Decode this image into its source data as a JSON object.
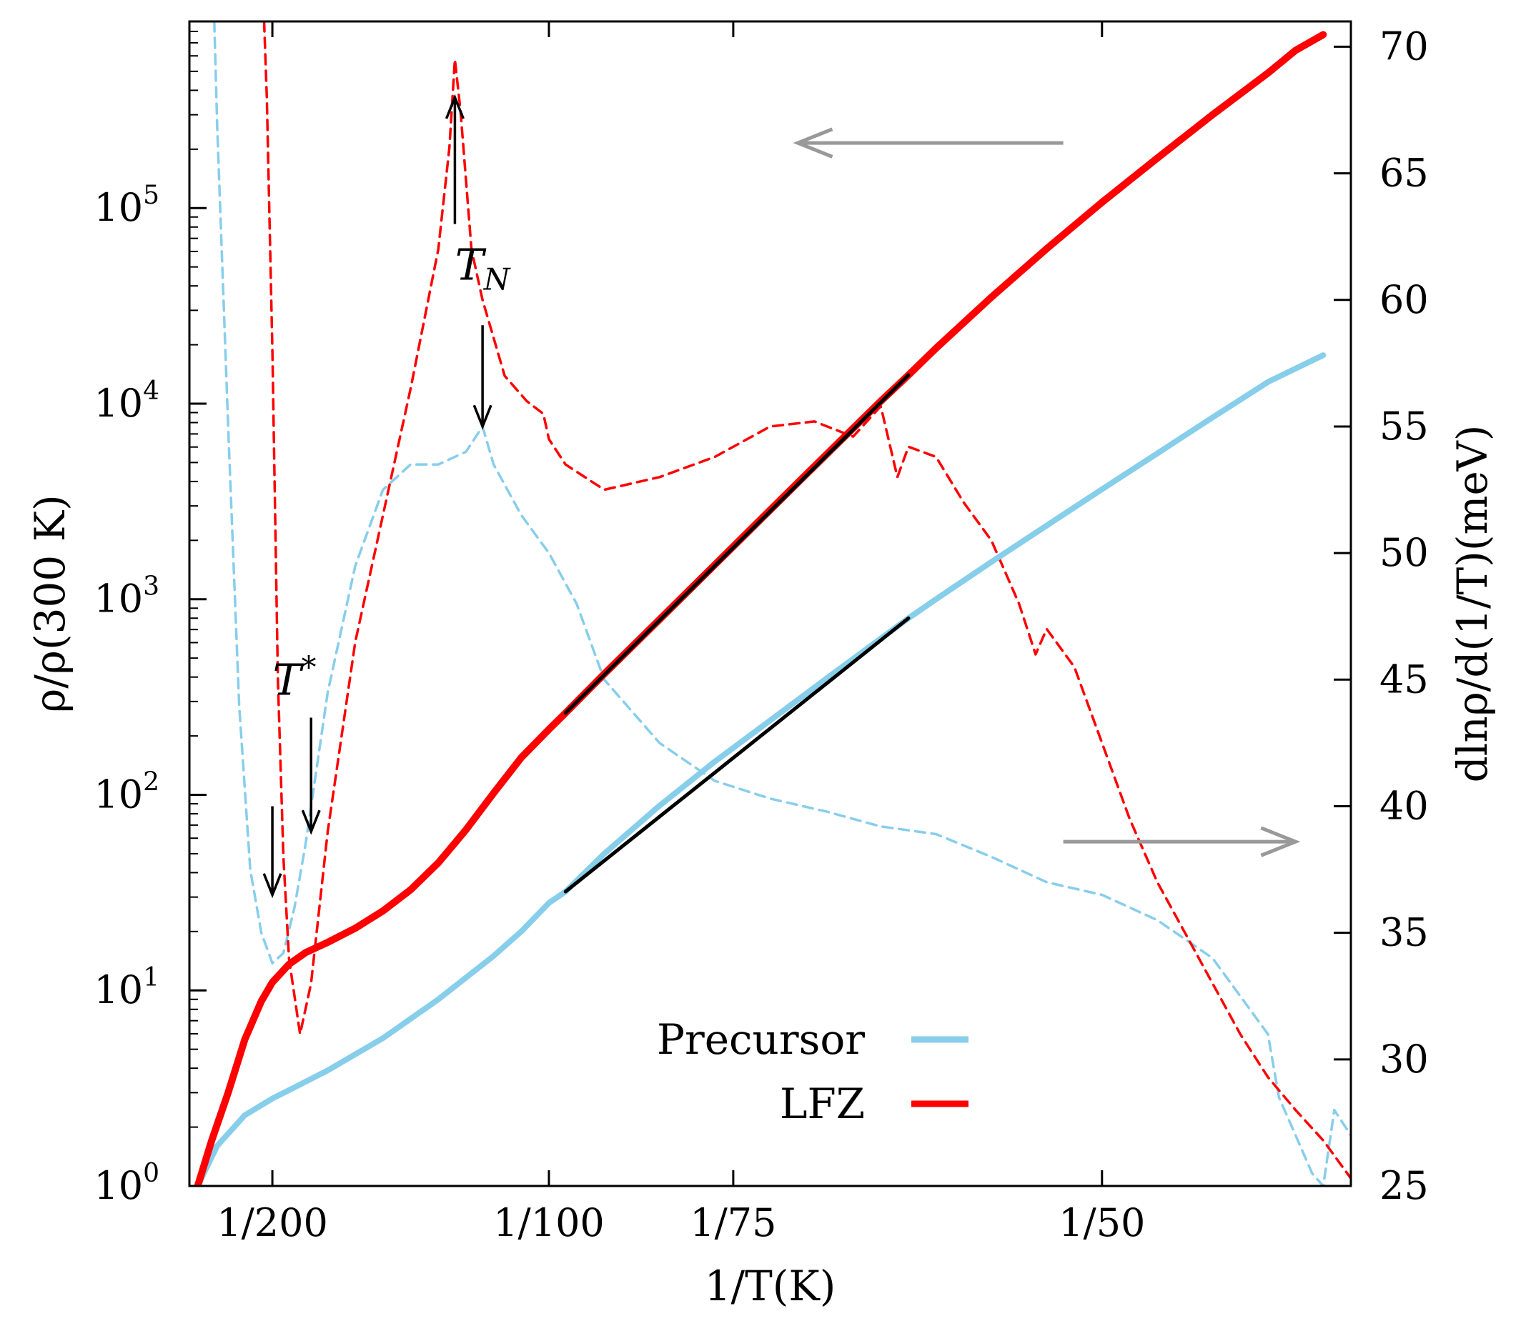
{
  "chart_data": {
    "type": "line",
    "x": {
      "label": "1/T(K)",
      "unit": "1/K",
      "range": [
        0.0035,
        0.0245
      ],
      "ticks": [
        {
          "value": 0.005,
          "label": "1/200"
        },
        {
          "value": 0.01,
          "label": "1/100"
        },
        {
          "value": 0.013333,
          "label": "1/75"
        },
        {
          "value": 0.02,
          "label": "1/50"
        }
      ]
    },
    "y_left": {
      "label": "ρ/ρ(300 K)",
      "scale": "log",
      "range": [
        1,
        900000
      ],
      "ticks": [
        {
          "value": 1,
          "base": "10",
          "exp": "0"
        },
        {
          "value": 10,
          "base": "10",
          "exp": "1"
        },
        {
          "value": 100,
          "base": "10",
          "exp": "2"
        },
        {
          "value": 1000,
          "base": "10",
          "exp": "3"
        },
        {
          "value": 10000,
          "base": "10",
          "exp": "4"
        },
        {
          "value": 100000,
          "base": "10",
          "exp": "5"
        }
      ]
    },
    "y_right": {
      "label": "dlnρ/d(1/T)(meV)",
      "range": [
        25,
        71
      ],
      "ticks": [
        {
          "value": 25,
          "label": "25"
        },
        {
          "value": 30,
          "label": "30"
        },
        {
          "value": 35,
          "label": "35"
        },
        {
          "value": 40,
          "label": "40"
        },
        {
          "value": 45,
          "label": "45"
        },
        {
          "value": 50,
          "label": "50"
        },
        {
          "value": 55,
          "label": "55"
        },
        {
          "value": 60,
          "label": "60"
        },
        {
          "value": 65,
          "label": "65"
        },
        {
          "value": 70,
          "label": "70"
        }
      ]
    },
    "series": [
      {
        "name": "LFZ",
        "axis": "left",
        "style": "solid",
        "color": "#ff0000",
        "points": [
          [
            0.00365,
            1.0
          ],
          [
            0.0039,
            1.7
          ],
          [
            0.0042,
            3.0
          ],
          [
            0.0045,
            5.6
          ],
          [
            0.0048,
            8.8
          ],
          [
            0.005,
            11.0
          ],
          [
            0.0053,
            13.6
          ],
          [
            0.0056,
            15.6
          ],
          [
            0.006,
            17.6
          ],
          [
            0.0065,
            20.8
          ],
          [
            0.007,
            25.5
          ],
          [
            0.0075,
            32.7
          ],
          [
            0.008,
            44.9
          ],
          [
            0.0085,
            66.2
          ],
          [
            0.009,
            102
          ],
          [
            0.0095,
            155
          ],
          [
            0.01,
            216
          ],
          [
            0.0103,
            262
          ],
          [
            0.011,
            415
          ],
          [
            0.012,
            787
          ],
          [
            0.013,
            1500
          ],
          [
            0.014,
            2860
          ],
          [
            0.015,
            5440
          ],
          [
            0.016,
            10300
          ],
          [
            0.0165,
            14000
          ],
          [
            0.017,
            19200
          ],
          [
            0.018,
            35000
          ],
          [
            0.019,
            62000
          ],
          [
            0.02,
            107000
          ],
          [
            0.021,
            180000
          ],
          [
            0.022,
            300000
          ],
          [
            0.023,
            490000
          ],
          [
            0.0235,
            640000
          ],
          [
            0.024,
            770000
          ]
        ]
      },
      {
        "name": "Precursor",
        "axis": "left",
        "style": "solid",
        "color": "#87ceeb",
        "points": [
          [
            0.00365,
            1.0
          ],
          [
            0.004,
            1.6
          ],
          [
            0.0045,
            2.3
          ],
          [
            0.005,
            2.8
          ],
          [
            0.0055,
            3.3
          ],
          [
            0.006,
            3.9
          ],
          [
            0.007,
            5.7
          ],
          [
            0.008,
            9.0
          ],
          [
            0.009,
            15.0
          ],
          [
            0.0095,
            20.0
          ],
          [
            0.01,
            28.0
          ],
          [
            0.0103,
            32.0
          ],
          [
            0.011,
            50.0
          ],
          [
            0.012,
            88.0
          ],
          [
            0.013,
            148
          ],
          [
            0.014,
            240
          ],
          [
            0.015,
            390
          ],
          [
            0.016,
            630
          ],
          [
            0.0165,
            800
          ],
          [
            0.017,
            1000
          ],
          [
            0.018,
            1550
          ],
          [
            0.019,
            2380
          ],
          [
            0.02,
            3650
          ],
          [
            0.021,
            5570
          ],
          [
            0.022,
            8500
          ],
          [
            0.023,
            12900
          ],
          [
            0.024,
            17700
          ]
        ]
      },
      {
        "name": "LFZ fit",
        "axis": "left",
        "style": "fit",
        "color": "#000000",
        "points": [
          [
            0.0103,
            262
          ],
          [
            0.0165,
            14000
          ]
        ]
      },
      {
        "name": "Precursor fit",
        "axis": "left",
        "style": "fit",
        "color": "#000000",
        "points": [
          [
            0.0103,
            32.0
          ],
          [
            0.0165,
            800
          ]
        ]
      },
      {
        "name": "LFZ derivative",
        "axis": "right",
        "style": "dashed",
        "color": "#ff0000",
        "points": [
          [
            0.00485,
            71.0
          ],
          [
            0.0049,
            68.0
          ],
          [
            0.005,
            58.0
          ],
          [
            0.0051,
            45.0
          ],
          [
            0.0052,
            38.0
          ],
          [
            0.0053,
            34.0
          ],
          [
            0.0055,
            31.0
          ],
          [
            0.0057,
            33.0
          ],
          [
            0.006,
            39.0
          ],
          [
            0.0065,
            46.5
          ],
          [
            0.007,
            51.5
          ],
          [
            0.0075,
            56.5
          ],
          [
            0.008,
            62.0
          ],
          [
            0.0082,
            66.0
          ],
          [
            0.0083,
            69.5
          ],
          [
            0.0084,
            67.5
          ],
          [
            0.0086,
            62.0
          ],
          [
            0.0088,
            60.0
          ],
          [
            0.009,
            58.5
          ],
          [
            0.0092,
            57.0
          ],
          [
            0.0096,
            56.0
          ],
          [
            0.0099,
            55.5
          ],
          [
            0.01,
            54.5
          ],
          [
            0.0103,
            53.5
          ],
          [
            0.011,
            52.5
          ],
          [
            0.012,
            53.0
          ],
          [
            0.013,
            53.8
          ],
          [
            0.014,
            55.0
          ],
          [
            0.0148,
            55.2
          ],
          [
            0.0155,
            54.6
          ],
          [
            0.016,
            55.8
          ],
          [
            0.0163,
            53.0
          ],
          [
            0.0165,
            54.2
          ],
          [
            0.017,
            53.8
          ],
          [
            0.0175,
            52.0
          ],
          [
            0.018,
            50.5
          ],
          [
            0.0185,
            48.0
          ],
          [
            0.0188,
            46.0
          ],
          [
            0.019,
            47.0
          ],
          [
            0.0195,
            45.5
          ],
          [
            0.02,
            42.5
          ],
          [
            0.0205,
            39.5
          ],
          [
            0.021,
            37.0
          ],
          [
            0.0215,
            35.0
          ],
          [
            0.022,
            33.0
          ],
          [
            0.0225,
            31.0
          ],
          [
            0.023,
            29.3
          ],
          [
            0.0235,
            28.0
          ],
          [
            0.024,
            26.8
          ],
          [
            0.0245,
            25.3
          ]
        ]
      },
      {
        "name": "Precursor derivative",
        "axis": "right",
        "style": "dashed",
        "color": "#87ceeb",
        "points": [
          [
            0.00395,
            71.0
          ],
          [
            0.004,
            67.0
          ],
          [
            0.0042,
            55.0
          ],
          [
            0.0044,
            44.0
          ],
          [
            0.0046,
            37.5
          ],
          [
            0.0048,
            35.0
          ],
          [
            0.005,
            33.8
          ],
          [
            0.0052,
            34.2
          ],
          [
            0.0054,
            36.0
          ],
          [
            0.0056,
            38.5
          ],
          [
            0.006,
            44.5
          ],
          [
            0.0065,
            49.5
          ],
          [
            0.007,
            52.5
          ],
          [
            0.0075,
            53.5
          ],
          [
            0.008,
            53.5
          ],
          [
            0.0085,
            54.0
          ],
          [
            0.0088,
            55.0
          ],
          [
            0.009,
            53.5
          ],
          [
            0.0095,
            51.5
          ],
          [
            0.01,
            50.0
          ],
          [
            0.0105,
            48.0
          ],
          [
            0.011,
            45.0
          ],
          [
            0.012,
            42.5
          ],
          [
            0.013,
            41.0
          ],
          [
            0.014,
            40.3
          ],
          [
            0.015,
            39.8
          ],
          [
            0.016,
            39.2
          ],
          [
            0.017,
            38.9
          ],
          [
            0.018,
            38.0
          ],
          [
            0.019,
            37.0
          ],
          [
            0.02,
            36.5
          ],
          [
            0.021,
            35.5
          ],
          [
            0.022,
            34.0
          ],
          [
            0.0225,
            32.5
          ],
          [
            0.023,
            31.0
          ],
          [
            0.0232,
            28.5
          ],
          [
            0.0235,
            27.0
          ],
          [
            0.0238,
            25.5
          ],
          [
            0.024,
            25.0
          ],
          [
            0.0242,
            28.0
          ],
          [
            0.0245,
            27.0
          ]
        ]
      }
    ],
    "annotations": [
      {
        "text": "T_N",
        "main": "T",
        "sub": "N",
        "x": 0.0088,
        "y_right": 60.8
      },
      {
        "text": "T*",
        "main": "T",
        "sup": "*",
        "x": 0.0054,
        "y_right": 44.4
      }
    ],
    "arrows": [
      {
        "axis": "right",
        "from": [
          0.0083,
          63.0
        ],
        "to": [
          0.0083,
          68.0
        ],
        "color": "#000000"
      },
      {
        "axis": "right",
        "from": [
          0.0088,
          59.0
        ],
        "to": [
          0.0088,
          55.0
        ],
        "color": "#000000"
      },
      {
        "axis": "right",
        "from": [
          0.005,
          40.0
        ],
        "to": [
          0.005,
          36.5
        ],
        "color": "#000000"
      },
      {
        "axis": "right",
        "from": [
          0.0057,
          43.5
        ],
        "to": [
          0.0057,
          39.0
        ],
        "color": "#000000"
      },
      {
        "axis": "right",
        "from": [
          0.0193,
          66.2
        ],
        "to": [
          0.0145,
          66.2
        ],
        "color": "#999999",
        "meaning": "left-axis"
      },
      {
        "axis": "right",
        "from": [
          0.0193,
          38.6
        ],
        "to": [
          0.0235,
          38.6
        ],
        "color": "#999999",
        "meaning": "right-axis"
      }
    ],
    "legend": {
      "position": "bottom-center",
      "entries": [
        {
          "label": "Precursor",
          "color": "#87ceeb"
        },
        {
          "label": "LFZ",
          "color": "#ff0000"
        }
      ]
    }
  }
}
